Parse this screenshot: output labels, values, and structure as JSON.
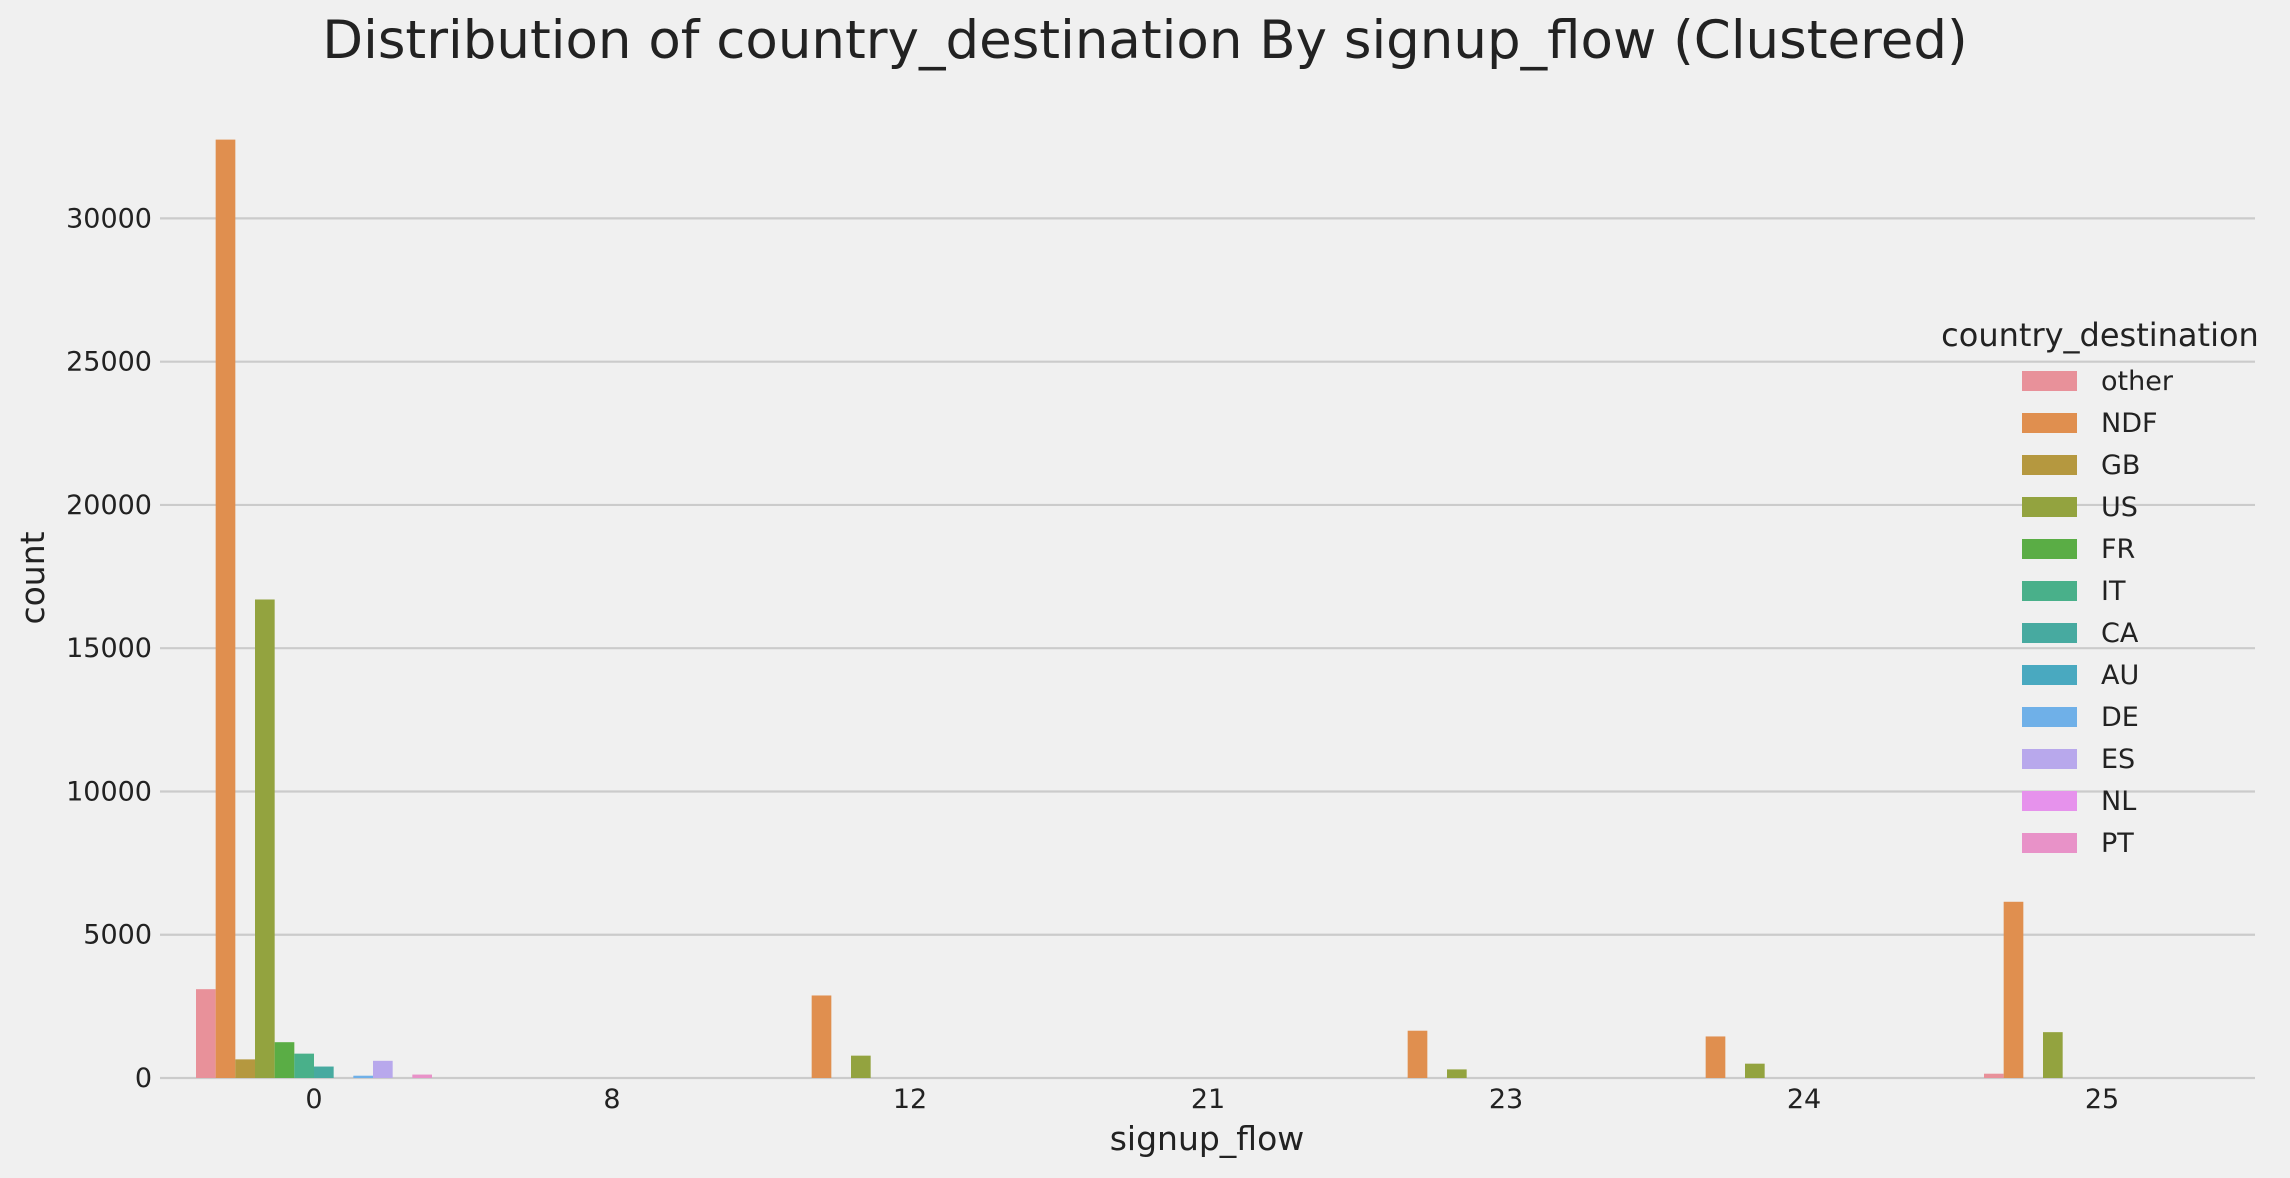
{
  "chart_data": {
    "type": "bar",
    "title": "Distribution of country_destination By signup_flow (Clustered)",
    "xlabel": "signup_flow",
    "ylabel": "count",
    "ylim": [
      0,
      34900
    ],
    "yticks": [
      0,
      5000,
      10000,
      15000,
      20000,
      25000,
      30000
    ],
    "grid": "y",
    "legend": {
      "title": "country_destination",
      "placement": "right"
    },
    "categories": [
      "0",
      "8",
      "12",
      "21",
      "23",
      "24",
      "25"
    ],
    "series": [
      {
        "name": "other",
        "color": "#e8919a",
        "values": [
          3100,
          0,
          0,
          0,
          0,
          0,
          150
        ]
      },
      {
        "name": "NDF",
        "color": "#e08f4f",
        "values": [
          32750,
          0,
          2880,
          0,
          1650,
          1450,
          6150
        ]
      },
      {
        "name": "GB",
        "color": "#b5983f",
        "values": [
          650,
          0,
          0,
          0,
          0,
          0,
          0
        ]
      },
      {
        "name": "US",
        "color": "#93a33f",
        "values": [
          16700,
          0,
          780,
          0,
          300,
          500,
          1600
        ]
      },
      {
        "name": "FR",
        "color": "#5aad45",
        "values": [
          1250,
          0,
          0,
          0,
          0,
          0,
          0
        ]
      },
      {
        "name": "IT",
        "color": "#49b08a",
        "values": [
          850,
          0,
          0,
          0,
          0,
          0,
          0
        ]
      },
      {
        "name": "CA",
        "color": "#47aaa0",
        "values": [
          400,
          0,
          0,
          0,
          0,
          0,
          0
        ]
      },
      {
        "name": "AU",
        "color": "#49a9c0",
        "values": [
          0,
          0,
          0,
          0,
          0,
          0,
          0
        ]
      },
      {
        "name": "DE",
        "color": "#6fb0e8",
        "values": [
          80,
          0,
          0,
          0,
          0,
          0,
          0
        ]
      },
      {
        "name": "ES",
        "color": "#b8a8ec",
        "values": [
          600,
          0,
          0,
          0,
          0,
          0,
          0
        ]
      },
      {
        "name": "NL",
        "color": "#e692ec",
        "values": [
          0,
          0,
          0,
          0,
          0,
          0,
          0
        ]
      },
      {
        "name": "PT",
        "color": "#e892c8",
        "values": [
          120,
          0,
          0,
          0,
          0,
          0,
          0
        ]
      }
    ]
  }
}
